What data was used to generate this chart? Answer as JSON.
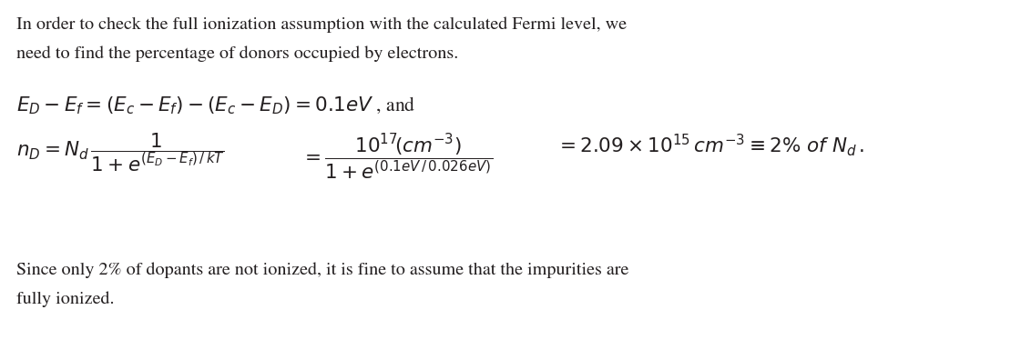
{
  "bg_color": "#ffffff",
  "text_color": "#231f20",
  "fig_width": 11.32,
  "fig_height": 3.85,
  "dpi": 100,
  "para1_line1": "In order to check the full ionization assumption with the calculated Fermi level, we",
  "para1_line2": "need to find the percentage of donors occupied by electrons.",
  "para2_line1": "Since only 2% of dopants are not ionized, it is fine to assume that the impurities are",
  "para2_line2": "fully ionized.",
  "font_size_body": 14.5,
  "font_size_eq": 15.5
}
